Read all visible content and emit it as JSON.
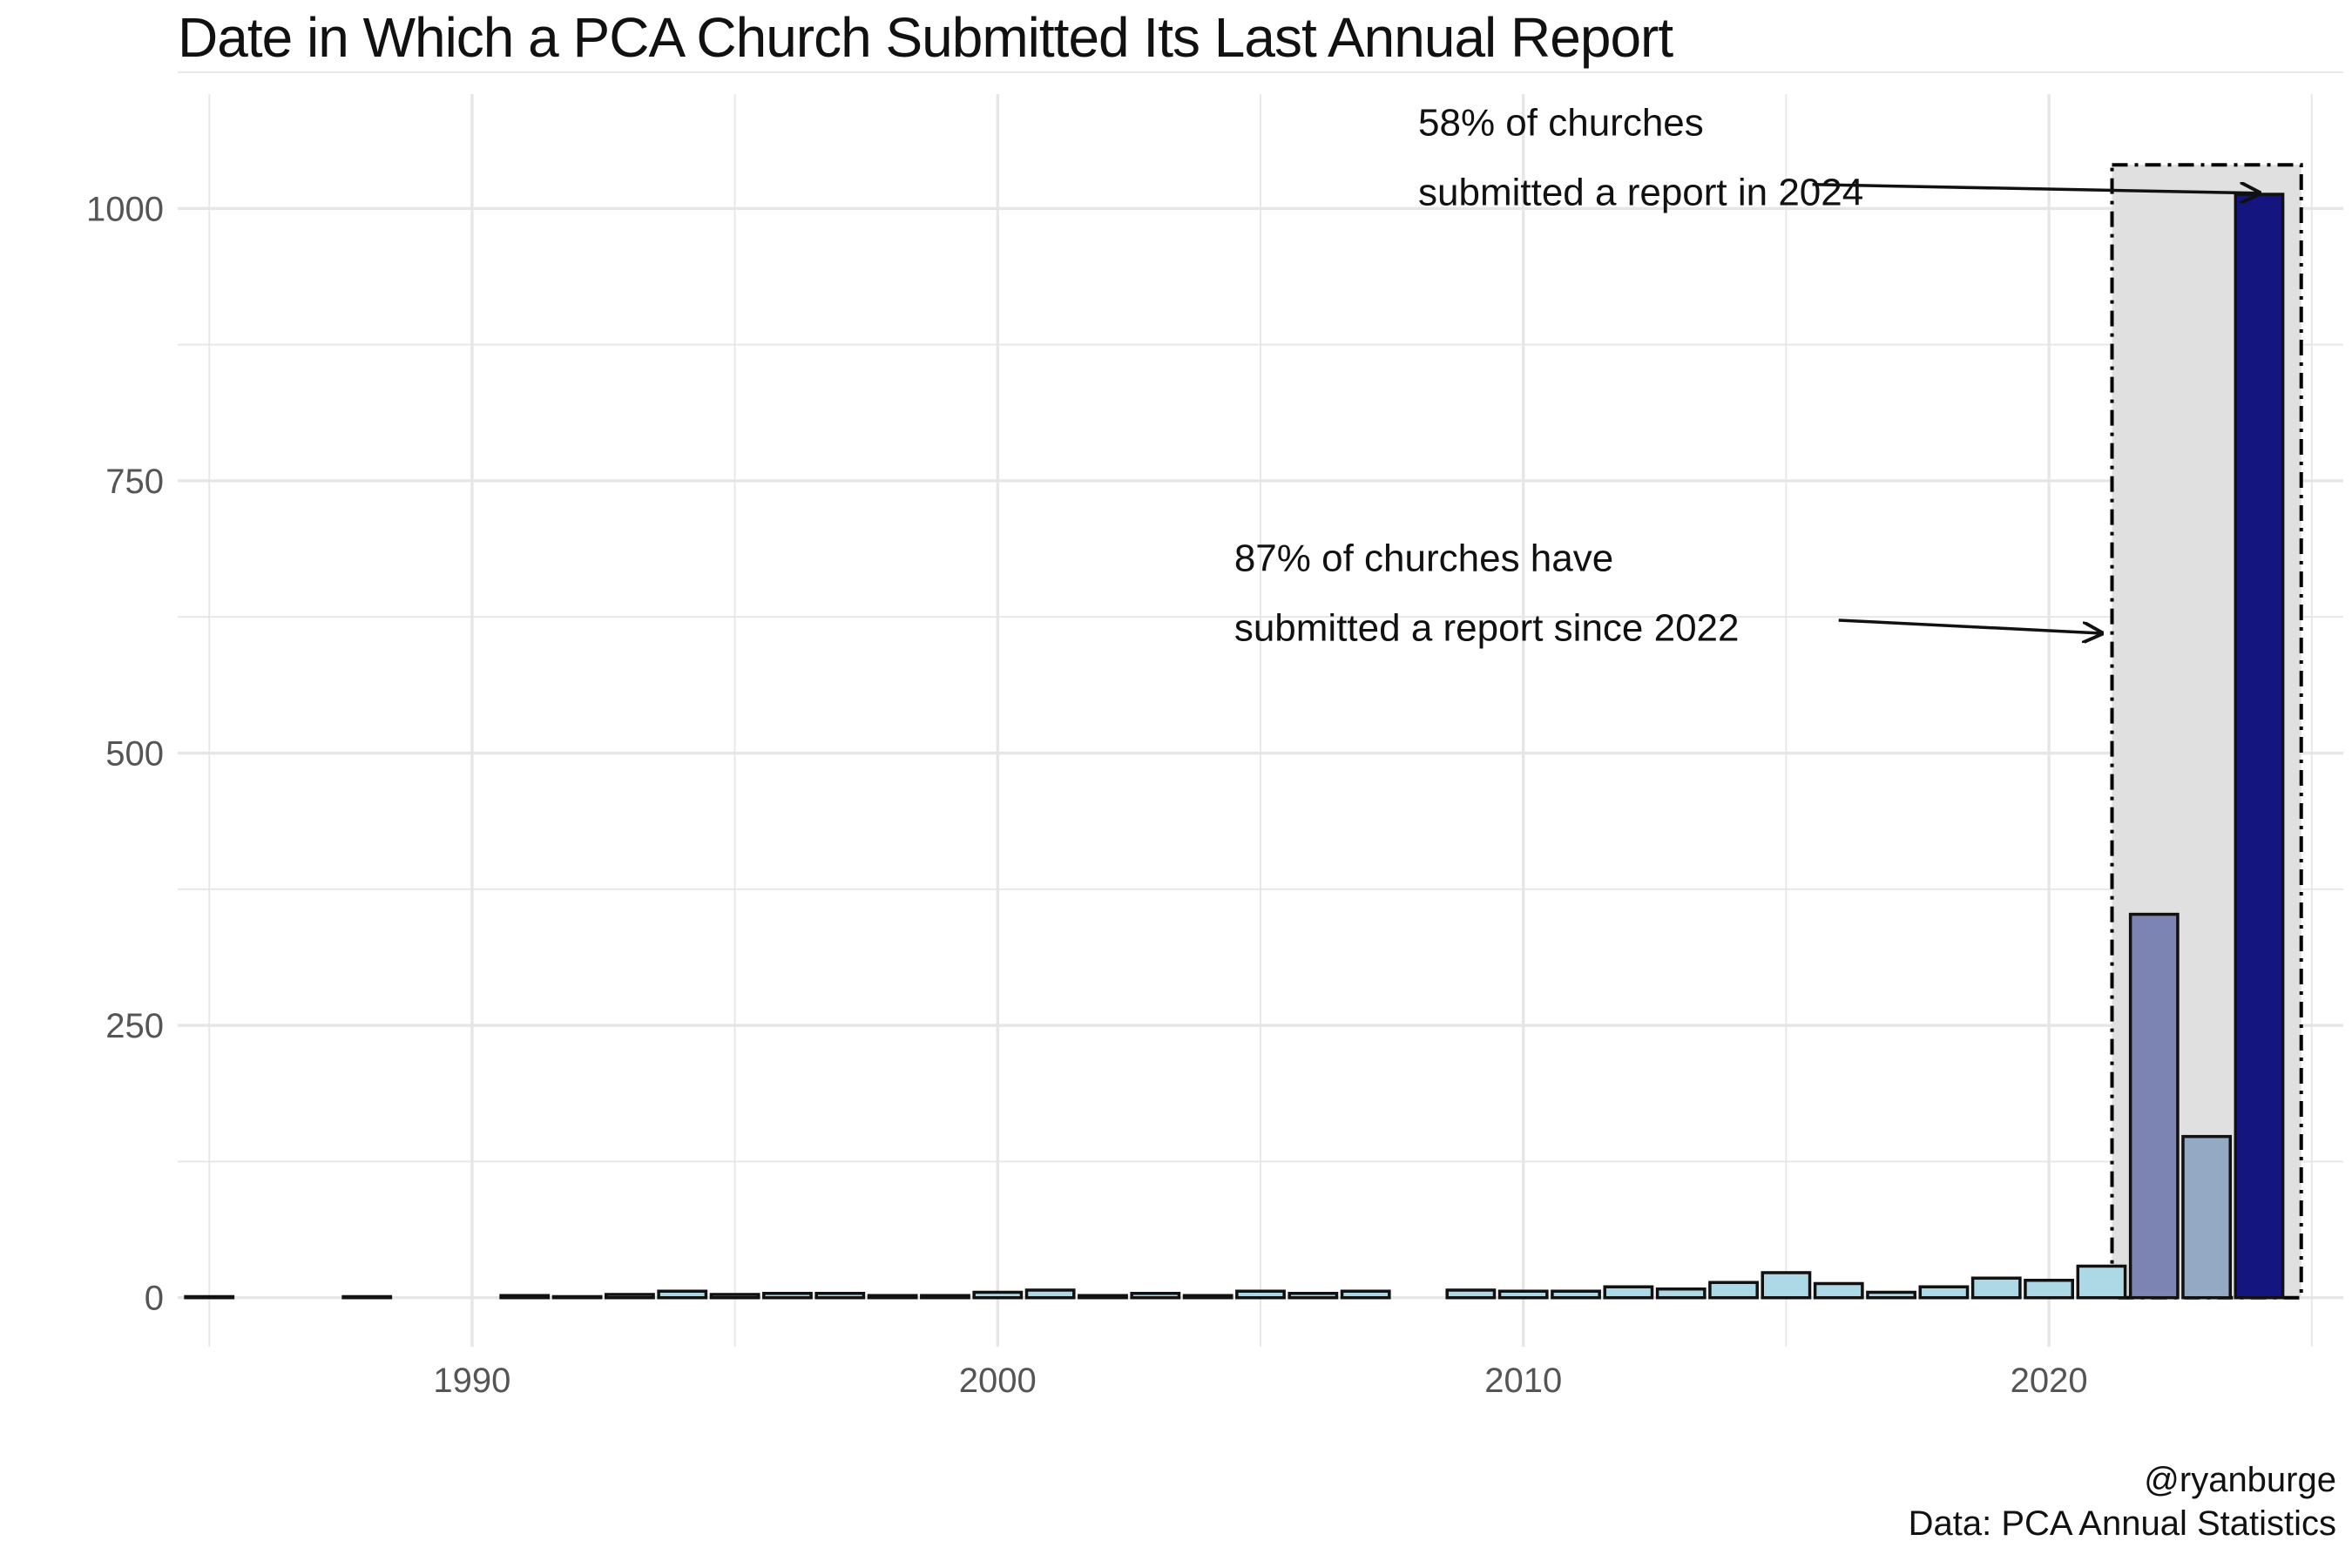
{
  "chart_data": {
    "type": "bar",
    "title": "Date in Which a PCA Church Submitted Its Last Annual Report",
    "xlabel": "",
    "ylabel": "",
    "xlim": [
      1984.4,
      2025.6
    ],
    "ylim": [
      -45,
      1105
    ],
    "x_ticks": [
      1990,
      2000,
      2010,
      2020
    ],
    "y_ticks": [
      0,
      250,
      500,
      750,
      1000
    ],
    "bar_width": 0.9,
    "colors": {
      "default": "#add8e6",
      "2022": "#7b84b3",
      "2023": "#94a9c4",
      "2024": "#151580",
      "highlight": "#e0e0e0",
      "grid": "#e6e6e6"
    },
    "bars": [
      {
        "year": 1985,
        "value": 1
      },
      {
        "year": 1988,
        "value": 1
      },
      {
        "year": 1991,
        "value": 2
      },
      {
        "year": 1992,
        "value": 1
      },
      {
        "year": 1993,
        "value": 3
      },
      {
        "year": 1994,
        "value": 6
      },
      {
        "year": 1995,
        "value": 3
      },
      {
        "year": 1996,
        "value": 4
      },
      {
        "year": 1997,
        "value": 4
      },
      {
        "year": 1998,
        "value": 2
      },
      {
        "year": 1999,
        "value": 2
      },
      {
        "year": 2000,
        "value": 5
      },
      {
        "year": 2001,
        "value": 7
      },
      {
        "year": 2002,
        "value": 2
      },
      {
        "year": 2003,
        "value": 4
      },
      {
        "year": 2004,
        "value": 2
      },
      {
        "year": 2005,
        "value": 6
      },
      {
        "year": 2006,
        "value": 4
      },
      {
        "year": 2007,
        "value": 6
      },
      {
        "year": 2009,
        "value": 7
      },
      {
        "year": 2010,
        "value": 6
      },
      {
        "year": 2011,
        "value": 6
      },
      {
        "year": 2012,
        "value": 10
      },
      {
        "year": 2013,
        "value": 8
      },
      {
        "year": 2014,
        "value": 14
      },
      {
        "year": 2015,
        "value": 23
      },
      {
        "year": 2016,
        "value": 13
      },
      {
        "year": 2017,
        "value": 5
      },
      {
        "year": 2018,
        "value": 10
      },
      {
        "year": 2019,
        "value": 18
      },
      {
        "year": 2020,
        "value": 16
      },
      {
        "year": 2021,
        "value": 29
      },
      {
        "year": 2022,
        "value": 352
      },
      {
        "year": 2023,
        "value": 148
      },
      {
        "year": 2024,
        "value": 1013
      }
    ],
    "highlight_box": {
      "x_from": 2021.2,
      "x_to": 2024.8,
      "y_top": 1040
    },
    "annotations": [
      {
        "lines": [
          "58% of churches",
          "submitted a report in 2024"
        ],
        "text_x": 2008,
        "text_y": 1080,
        "arrow_from": [
          2015.5,
          1022
        ],
        "arrow_to": [
          2024,
          1014
        ]
      },
      {
        "lines": [
          "87% of churches have",
          "submitted a report since 2022"
        ],
        "text_x": 2004.5,
        "text_y": 680,
        "arrow_from": [
          2016,
          622
        ],
        "arrow_to": [
          2021,
          610
        ]
      }
    ],
    "caption": [
      "@ryanburge",
      "Data: PCA Annual Statistics"
    ]
  }
}
